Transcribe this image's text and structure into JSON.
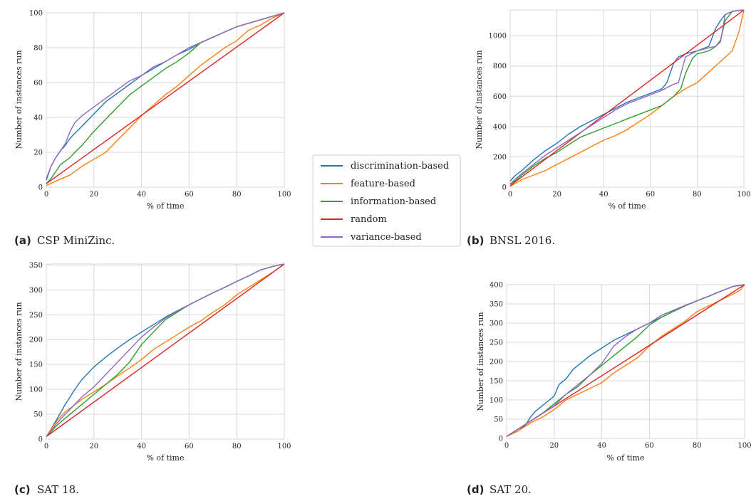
{
  "colors": {
    "discrimination": "#1f77b4",
    "feature": "#ff7f0e",
    "information": "#2ca02c",
    "random": "#d62728",
    "variance": "#9467bd",
    "grid": "#d9d9d9"
  },
  "legend": {
    "items": [
      {
        "label": "discrimination-based",
        "color": "#1f77b4"
      },
      {
        "label": "feature-based",
        "color": "#ff7f0e"
      },
      {
        "label": "information-based",
        "color": "#2ca02c"
      },
      {
        "label": "random",
        "color": "#d62728"
      },
      {
        "label": "variance-based",
        "color": "#9467bd"
      }
    ]
  },
  "chart_data": [
    {
      "type": "line",
      "caption_letter": "(a)",
      "caption_text": "CSP MiniZinc.",
      "xlabel": "% of time",
      "ylabel": "Number of instances run",
      "xlim": [
        0,
        100
      ],
      "ylim": [
        0,
        100
      ],
      "xticks": [
        0,
        20,
        40,
        60,
        80,
        100
      ],
      "yticks": [
        0,
        20,
        40,
        60,
        80,
        100
      ],
      "grid": true,
      "series": [
        {
          "name": "discrimination-based",
          "color": "#1f77b4",
          "x": [
            0,
            2,
            4,
            6,
            8,
            10,
            12,
            15,
            20,
            25,
            30,
            35,
            40,
            45,
            50,
            55,
            60,
            65,
            70,
            75,
            80,
            85,
            90,
            95,
            100
          ],
          "y": [
            4,
            12,
            17,
            21,
            24,
            28,
            31,
            35,
            42,
            49,
            54,
            59,
            64,
            68,
            72,
            76,
            79,
            83,
            86,
            89,
            92,
            94,
            96,
            98,
            100
          ]
        },
        {
          "name": "feature-based",
          "color": "#ff7f0e",
          "x": [
            0,
            5,
            10,
            15,
            20,
            25,
            30,
            35,
            40,
            45,
            50,
            55,
            60,
            65,
            70,
            75,
            80,
            85,
            90,
            95,
            100
          ],
          "y": [
            1,
            4,
            7,
            12,
            16,
            20,
            27,
            34,
            41,
            47,
            53,
            58,
            64,
            70,
            75,
            80,
            84,
            90,
            93,
            97,
            100
          ]
        },
        {
          "name": "information-based",
          "color": "#2ca02c",
          "x": [
            0,
            2,
            4,
            6,
            8,
            10,
            12,
            15,
            20,
            25,
            30,
            35,
            40,
            45,
            50,
            55,
            60,
            65,
            70,
            75,
            80,
            85,
            90,
            95,
            100
          ],
          "y": [
            2,
            5,
            9,
            13,
            15,
            17,
            20,
            24,
            32,
            39,
            46,
            53,
            58,
            63,
            68,
            72,
            77,
            83,
            86,
            89,
            92,
            94,
            96,
            98,
            100
          ]
        },
        {
          "name": "random",
          "color": "#d62728",
          "x": [
            0,
            100
          ],
          "y": [
            2,
            100
          ]
        },
        {
          "name": "variance-based",
          "color": "#9467bd",
          "x": [
            0,
            2,
            4,
            6,
            8,
            10,
            12,
            15,
            20,
            25,
            30,
            35,
            40,
            45,
            50,
            55,
            60,
            65,
            70,
            75,
            80,
            85,
            90,
            95,
            100
          ],
          "y": [
            5,
            12,
            17,
            21,
            25,
            32,
            37,
            41,
            46,
            51,
            56,
            61,
            64,
            69,
            72,
            76,
            80,
            83,
            86,
            89,
            92,
            94,
            96,
            98,
            100
          ]
        }
      ]
    },
    {
      "type": "line",
      "caption_letter": "(b)",
      "caption_text": "BNSL 2016.",
      "xlabel": "% of time",
      "ylabel": "Number of instances run",
      "xlim": [
        0,
        100
      ],
      "ylim": [
        0,
        1170
      ],
      "xticks": [
        0,
        20,
        40,
        60,
        80,
        100
      ],
      "yticks": [
        0,
        200,
        400,
        600,
        800,
        1000
      ],
      "grid": true,
      "series": [
        {
          "name": "discrimination-based",
          "color": "#1f77b4",
          "x": [
            0,
            2,
            5,
            10,
            15,
            20,
            25,
            30,
            35,
            40,
            45,
            50,
            55,
            60,
            65,
            67,
            70,
            72,
            75,
            80,
            85,
            88,
            90,
            92,
            95,
            100
          ],
          "y": [
            40,
            75,
            110,
            180,
            240,
            290,
            350,
            400,
            440,
            480,
            520,
            560,
            590,
            620,
            650,
            690,
            820,
            860,
            880,
            900,
            930,
            1050,
            1100,
            1140,
            1160,
            1170
          ]
        },
        {
          "name": "feature-based",
          "color": "#ff7f0e",
          "x": [
            0,
            5,
            10,
            15,
            20,
            25,
            30,
            35,
            40,
            45,
            50,
            55,
            60,
            65,
            70,
            75,
            80,
            85,
            90,
            95,
            98,
            100
          ],
          "y": [
            5,
            50,
            80,
            110,
            150,
            190,
            230,
            270,
            310,
            340,
            380,
            430,
            480,
            540,
            600,
            650,
            690,
            760,
            830,
            900,
            1030,
            1170
          ]
        },
        {
          "name": "information-based",
          "color": "#2ca02c",
          "x": [
            0,
            2,
            5,
            10,
            15,
            20,
            25,
            30,
            35,
            40,
            45,
            50,
            55,
            60,
            65,
            70,
            73,
            75,
            78,
            80,
            85,
            88,
            90,
            92,
            95,
            100
          ],
          "y": [
            20,
            40,
            80,
            140,
            190,
            230,
            280,
            330,
            360,
            390,
            420,
            450,
            480,
            510,
            540,
            600,
            650,
            750,
            850,
            880,
            900,
            930,
            970,
            1100,
            1160,
            1170
          ]
        },
        {
          "name": "random",
          "color": "#d62728",
          "x": [
            0,
            100
          ],
          "y": [
            10,
            1170
          ]
        },
        {
          "name": "variance-based",
          "color": "#9467bd",
          "x": [
            0,
            2,
            5,
            10,
            15,
            20,
            25,
            30,
            35,
            40,
            45,
            50,
            55,
            60,
            65,
            70,
            72,
            75,
            80,
            85,
            88,
            90,
            92,
            95,
            100
          ],
          "y": [
            20,
            50,
            90,
            150,
            210,
            260,
            310,
            360,
            410,
            460,
            510,
            550,
            580,
            610,
            640,
            680,
            690,
            860,
            900,
            920,
            930,
            960,
            1140,
            1160,
            1170
          ]
        }
      ]
    },
    {
      "type": "line",
      "caption_letter": "(c)",
      "caption_text": "SAT 18.",
      "xlabel": "% of time",
      "ylabel": "Number of instances run",
      "xlim": [
        0,
        100
      ],
      "ylim": [
        0,
        352
      ],
      "xticks": [
        0,
        20,
        40,
        60,
        80,
        100
      ],
      "yticks": [
        0,
        50,
        100,
        150,
        200,
        250,
        300,
        350
      ],
      "grid": true,
      "series": [
        {
          "name": "discrimination-based",
          "color": "#1f77b4",
          "x": [
            0,
            2,
            5,
            8,
            10,
            12,
            15,
            20,
            25,
            30,
            35,
            40,
            45,
            50,
            55,
            60,
            65,
            70,
            75,
            80,
            85,
            90,
            95,
            100
          ],
          "y": [
            5,
            20,
            45,
            70,
            85,
            100,
            120,
            145,
            165,
            183,
            200,
            215,
            230,
            245,
            258,
            270,
            282,
            294,
            305,
            317,
            328,
            340,
            347,
            352
          ]
        },
        {
          "name": "feature-based",
          "color": "#ff7f0e",
          "x": [
            0,
            2,
            5,
            8,
            10,
            15,
            20,
            25,
            30,
            35,
            40,
            45,
            50,
            55,
            60,
            65,
            70,
            75,
            80,
            85,
            90,
            95,
            100
          ],
          "y": [
            5,
            20,
            40,
            55,
            62,
            80,
            95,
            110,
            127,
            143,
            160,
            180,
            195,
            210,
            225,
            238,
            255,
            270,
            290,
            305,
            320,
            335,
            352
          ]
        },
        {
          "name": "information-based",
          "color": "#2ca02c",
          "x": [
            0,
            5,
            10,
            15,
            20,
            25,
            30,
            35,
            40,
            45,
            50,
            55,
            60,
            65,
            70,
            75,
            80,
            85,
            90,
            95,
            100
          ],
          "y": [
            5,
            30,
            50,
            70,
            90,
            110,
            130,
            155,
            190,
            215,
            240,
            255,
            270,
            282,
            294,
            305,
            317,
            328,
            340,
            347,
            352
          ]
        },
        {
          "name": "random",
          "color": "#d62728",
          "x": [
            0,
            100
          ],
          "y": [
            5,
            352
          ]
        },
        {
          "name": "variance-based",
          "color": "#9467bd",
          "x": [
            0,
            5,
            10,
            15,
            20,
            25,
            30,
            35,
            40,
            45,
            50,
            55,
            60,
            65,
            70,
            75,
            80,
            85,
            90,
            95,
            100
          ],
          "y": [
            5,
            35,
            60,
            85,
            105,
            130,
            155,
            180,
            205,
            225,
            243,
            257,
            270,
            282,
            294,
            305,
            317,
            328,
            340,
            347,
            352
          ]
        }
      ]
    },
    {
      "type": "line",
      "caption_letter": "(d)",
      "caption_text": "SAT 20.",
      "xlabel": "% of time",
      "ylabel": "Number of instances run",
      "xlim": [
        0,
        100
      ],
      "ylim": [
        0,
        400
      ],
      "xticks": [
        0,
        20,
        40,
        60,
        80,
        100
      ],
      "yticks": [
        0,
        50,
        100,
        150,
        200,
        250,
        300,
        350,
        400
      ],
      "grid": true,
      "series": [
        {
          "name": "discrimination-based",
          "color": "#1f77b4",
          "x": [
            0,
            5,
            8,
            10,
            12,
            15,
            20,
            22,
            25,
            28,
            30,
            35,
            40,
            45,
            50,
            55,
            60,
            65,
            70,
            75,
            80,
            85,
            90,
            95,
            100
          ],
          "y": [
            5,
            20,
            35,
            55,
            70,
            85,
            110,
            140,
            155,
            180,
            190,
            215,
            235,
            255,
            270,
            285,
            300,
            315,
            330,
            345,
            358,
            370,
            383,
            395,
            400
          ]
        },
        {
          "name": "feature-based",
          "color": "#ff7f0e",
          "x": [
            0,
            5,
            10,
            15,
            20,
            25,
            30,
            35,
            40,
            45,
            50,
            55,
            60,
            65,
            70,
            75,
            80,
            85,
            90,
            95,
            98,
            100
          ],
          "y": [
            5,
            20,
            40,
            55,
            75,
            100,
            115,
            130,
            145,
            170,
            190,
            210,
            240,
            265,
            285,
            305,
            330,
            345,
            360,
            375,
            385,
            400
          ]
        },
        {
          "name": "information-based",
          "color": "#2ca02c",
          "x": [
            0,
            5,
            10,
            15,
            20,
            25,
            30,
            35,
            40,
            45,
            50,
            55,
            60,
            65,
            70,
            75,
            80,
            85,
            90,
            95,
            100
          ],
          "y": [
            5,
            25,
            45,
            65,
            90,
            115,
            135,
            165,
            190,
            215,
            240,
            265,
            295,
            315,
            330,
            345,
            358,
            370,
            383,
            395,
            400
          ]
        },
        {
          "name": "random",
          "color": "#d62728",
          "x": [
            0,
            100
          ],
          "y": [
            5,
            400
          ]
        },
        {
          "name": "variance-based",
          "color": "#9467bd",
          "x": [
            0,
            5,
            10,
            15,
            20,
            25,
            30,
            35,
            40,
            45,
            50,
            55,
            60,
            65,
            70,
            75,
            80,
            85,
            90,
            95,
            100
          ],
          "y": [
            5,
            25,
            45,
            65,
            85,
            115,
            140,
            165,
            195,
            240,
            265,
            285,
            300,
            320,
            333,
            346,
            358,
            370,
            383,
            395,
            400
          ]
        }
      ]
    }
  ]
}
